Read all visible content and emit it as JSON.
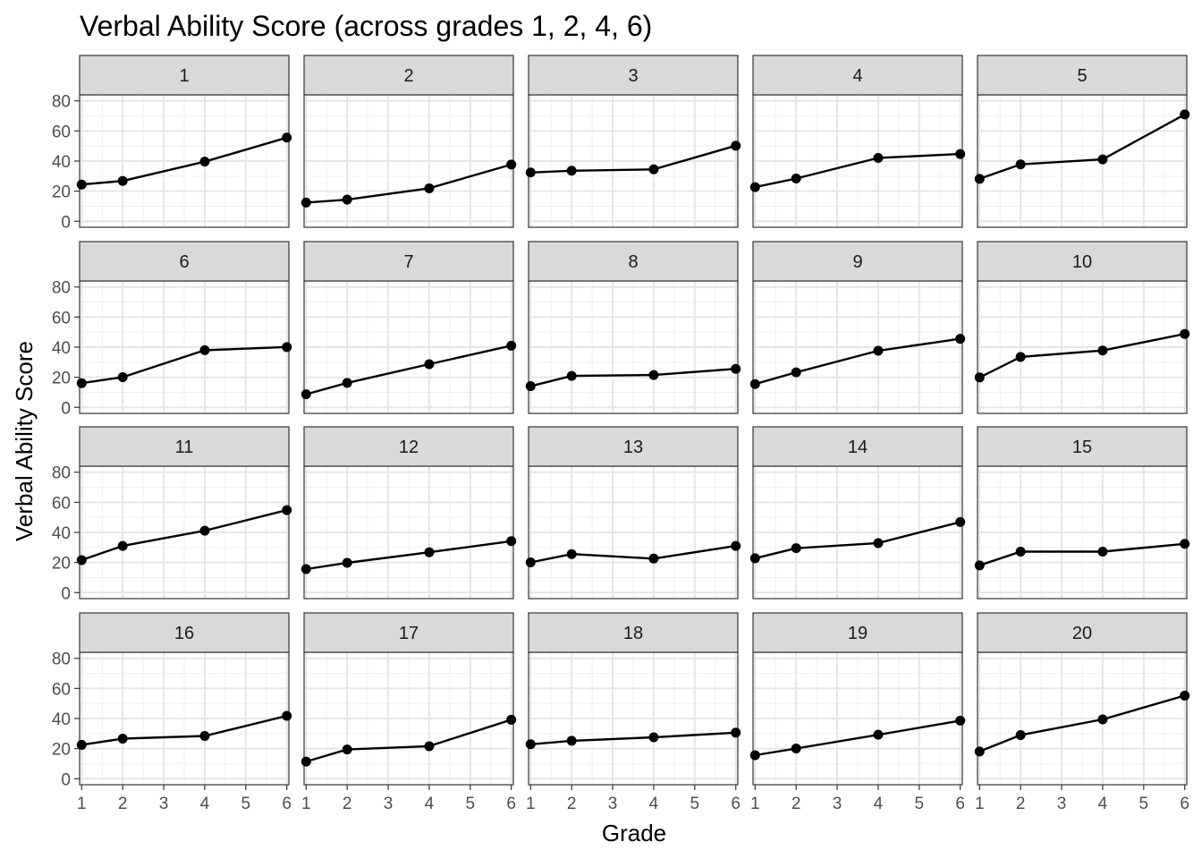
{
  "chart_data": {
    "type": "line",
    "title": "Verbal Ability Score (across grades 1, 2, 4, 6)",
    "xlabel": "Grade",
    "ylabel": "Verbal Ability Score",
    "x_ticks": [
      "1",
      "2",
      "3",
      "4",
      "5",
      "6"
    ],
    "y_ticks": [
      "0",
      "20",
      "40",
      "60",
      "80"
    ],
    "xlim": [
      0.95,
      6.05
    ],
    "ylim": [
      -4,
      84
    ],
    "grid": true,
    "x": [
      1,
      2,
      4,
      6
    ],
    "panels": [
      {
        "label": "1",
        "values": [
          24.4,
          26.8,
          39.6,
          55.6
        ]
      },
      {
        "label": "2",
        "values": [
          12.4,
          14.4,
          21.9,
          37.7
        ]
      },
      {
        "label": "3",
        "values": [
          32.4,
          33.6,
          34.5,
          50.2
        ]
      },
      {
        "label": "4",
        "values": [
          22.7,
          28.4,
          42.1,
          44.7
        ]
      },
      {
        "label": "5",
        "values": [
          28.2,
          37.8,
          41.1,
          71.0
        ]
      },
      {
        "label": "6",
        "values": [
          16.1,
          20.1,
          38.0,
          40.1
        ]
      },
      {
        "label": "7",
        "values": [
          8.7,
          16.3,
          28.7,
          41.0
        ]
      },
      {
        "label": "8",
        "values": [
          14.1,
          20.9,
          21.5,
          25.6
        ]
      },
      {
        "label": "9",
        "values": [
          15.5,
          23.3,
          37.6,
          45.6
        ]
      },
      {
        "label": "10",
        "values": [
          19.9,
          33.5,
          37.8,
          48.8
        ]
      },
      {
        "label": "11",
        "values": [
          21.6,
          31.0,
          41.1,
          54.8
        ]
      },
      {
        "label": "12",
        "values": [
          15.6,
          19.8,
          26.8,
          34.2
        ]
      },
      {
        "label": "13",
        "values": [
          20.1,
          25.6,
          22.6,
          31.0
        ]
      },
      {
        "label": "14",
        "values": [
          22.8,
          29.5,
          32.9,
          46.9
        ]
      },
      {
        "label": "15",
        "values": [
          18.1,
          27.2,
          27.2,
          32.4
        ]
      },
      {
        "label": "16",
        "values": [
          22.5,
          26.6,
          28.4,
          41.8
        ]
      },
      {
        "label": "17",
        "values": [
          11.4,
          19.4,
          21.6,
          39.2
        ]
      },
      {
        "label": "18",
        "values": [
          22.9,
          25.2,
          27.5,
          30.6
        ]
      },
      {
        "label": "19",
        "values": [
          15.6,
          20.1,
          29.2,
          38.6
        ]
      },
      {
        "label": "20",
        "values": [
          18.1,
          29.0,
          39.4,
          55.2
        ]
      }
    ]
  }
}
